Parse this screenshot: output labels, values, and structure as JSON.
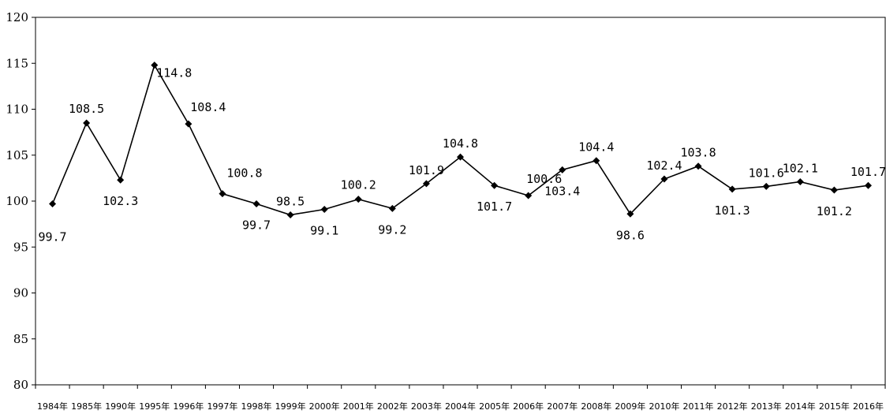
{
  "chart_data": {
    "type": "line",
    "title": "",
    "xlabel": "",
    "ylabel": "",
    "ylim": [
      80,
      120
    ],
    "yticks": [
      80,
      85,
      90,
      95,
      100,
      105,
      110,
      115,
      120
    ],
    "grid": false,
    "legend": "none",
    "categories": [
      "1984年",
      "1985年",
      "1990年",
      "1995年",
      "1996年",
      "1997年",
      "1998年",
      "1999年",
      "2000年",
      "2001年",
      "2002年",
      "2003年",
      "2004年",
      "2005年",
      "2006年",
      "2007年",
      "2008年",
      "2009年",
      "2010年",
      "2011年",
      "2012年",
      "2013年",
      "2014年",
      "2015年",
      "2016年"
    ],
    "series": [
      {
        "values": [
          99.7,
          108.5,
          102.3,
          114.8,
          108.4,
          100.8,
          99.7,
          98.5,
          99.1,
          100.2,
          99.2,
          101.9,
          104.8,
          101.7,
          100.6,
          103.4,
          104.4,
          98.6,
          102.4,
          103.8,
          101.3,
          101.6,
          102.1,
          101.2,
          101.7
        ],
        "labels": [
          "99.7",
          "108.5",
          "102.3",
          "114.8",
          "108.4",
          "100.8",
          "99.7",
          "98.5",
          "99.1",
          "100.2",
          "99.2",
          "101.9",
          "104.8",
          "101.7",
          "100.6",
          "103.4",
          "104.4",
          "98.6",
          "102.4",
          "103.8",
          "101.3",
          "101.6",
          "102.1",
          "101.2",
          "101.7"
        ],
        "color": "#000000"
      }
    ]
  }
}
